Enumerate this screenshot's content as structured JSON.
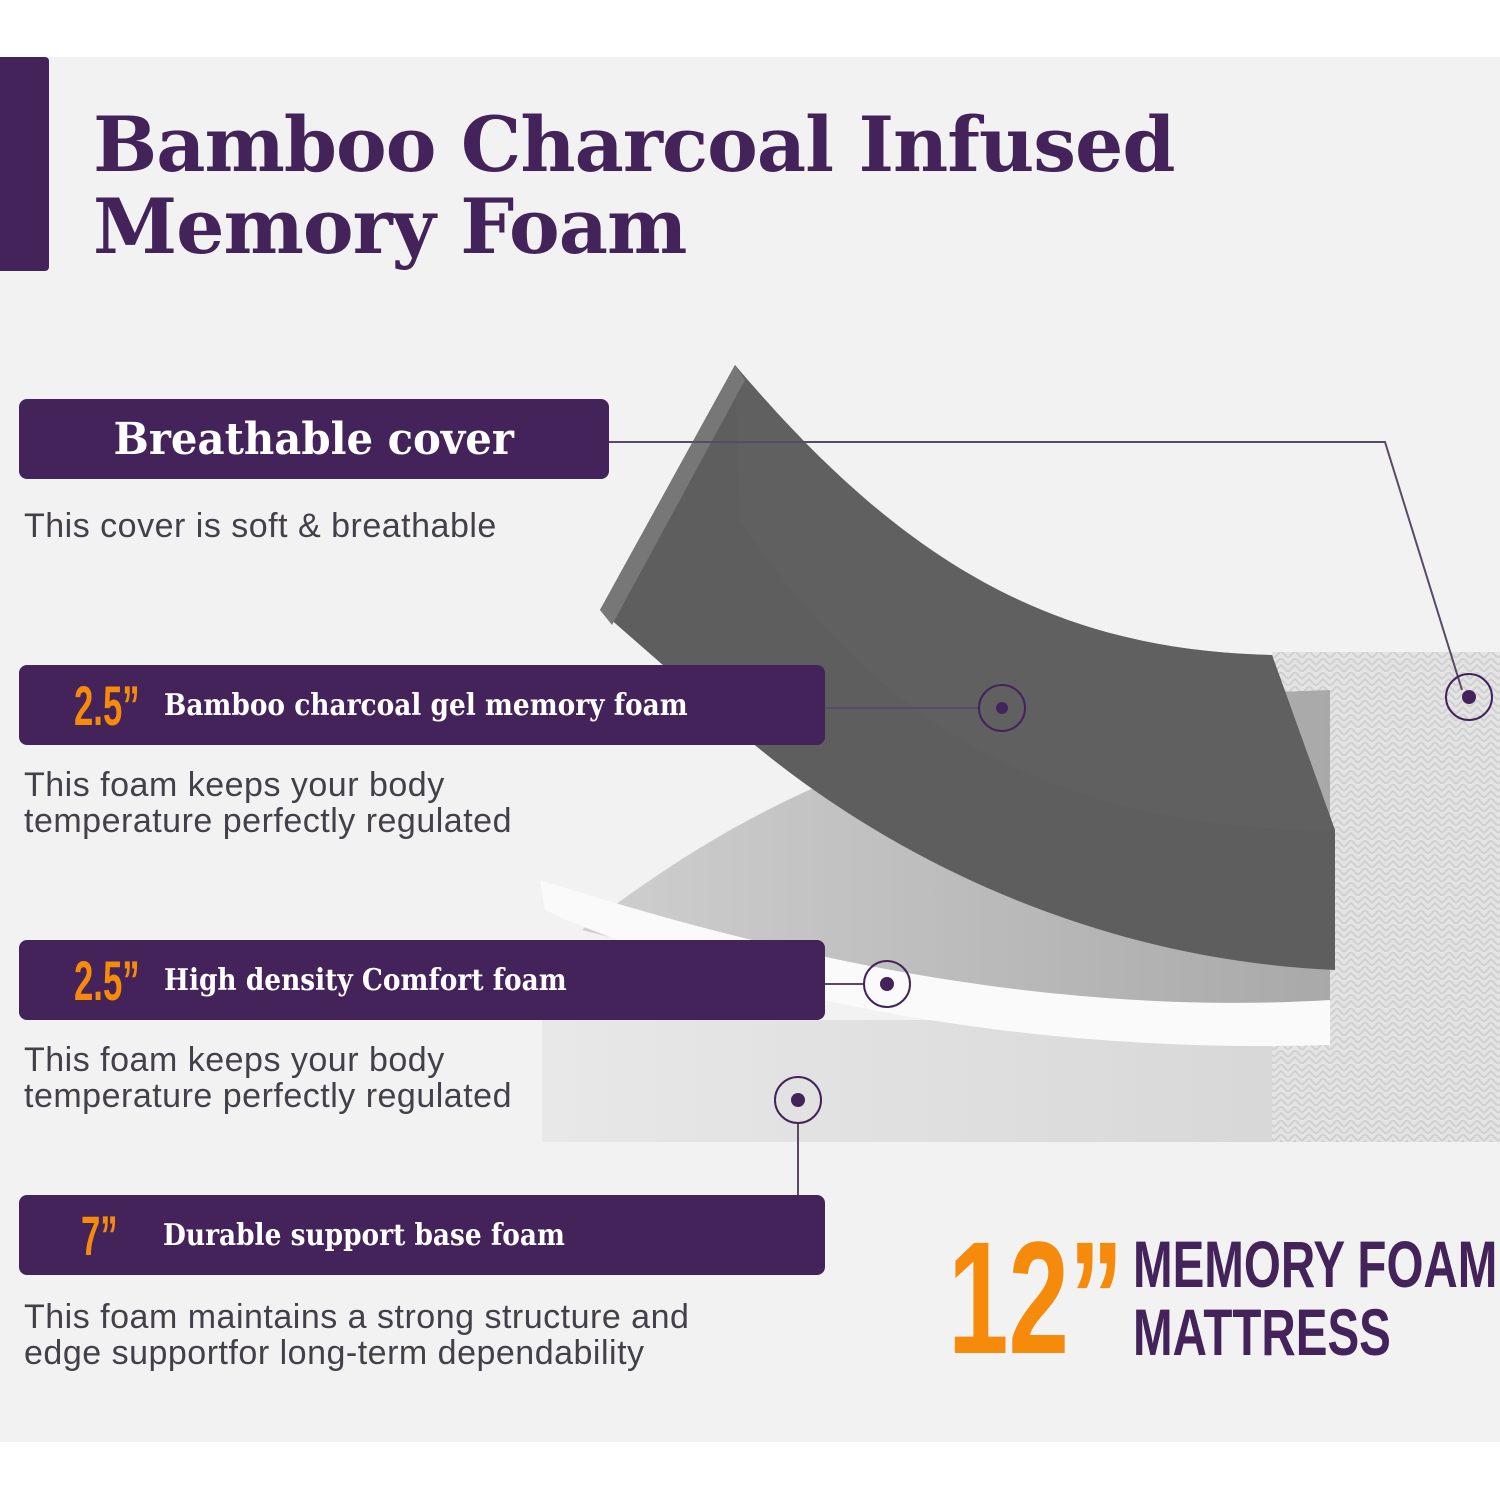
{
  "title": {
    "line1": "Bamboo Charcoal Infused",
    "line2": "Memory Foam"
  },
  "colors": {
    "purple": "#44235a",
    "orange": "#f58a0b",
    "background": "#f2f2f2"
  },
  "layers": [
    {
      "thickness": "",
      "label": "Breathable cover",
      "description": [
        "This cover is soft & breathable"
      ]
    },
    {
      "thickness": "2.5”",
      "label": "Bamboo charcoal gel  memory foam",
      "description": [
        "This foam keeps your body",
        "temperature perfectly regulated"
      ]
    },
    {
      "thickness": "2.5”",
      "label": "High density Comfort foam",
      "description": [
        "This foam keeps your body",
        "temperature perfectly regulated"
      ]
    },
    {
      "thickness": "7”",
      "label": "Durable support base foam",
      "description": [
        "This foam maintains a strong structure and",
        "edge supportfor long-term dependability"
      ]
    }
  ],
  "summary": {
    "height": "12”",
    "line1": "MEMORY FOAM",
    "line2": "MATTRESS"
  }
}
